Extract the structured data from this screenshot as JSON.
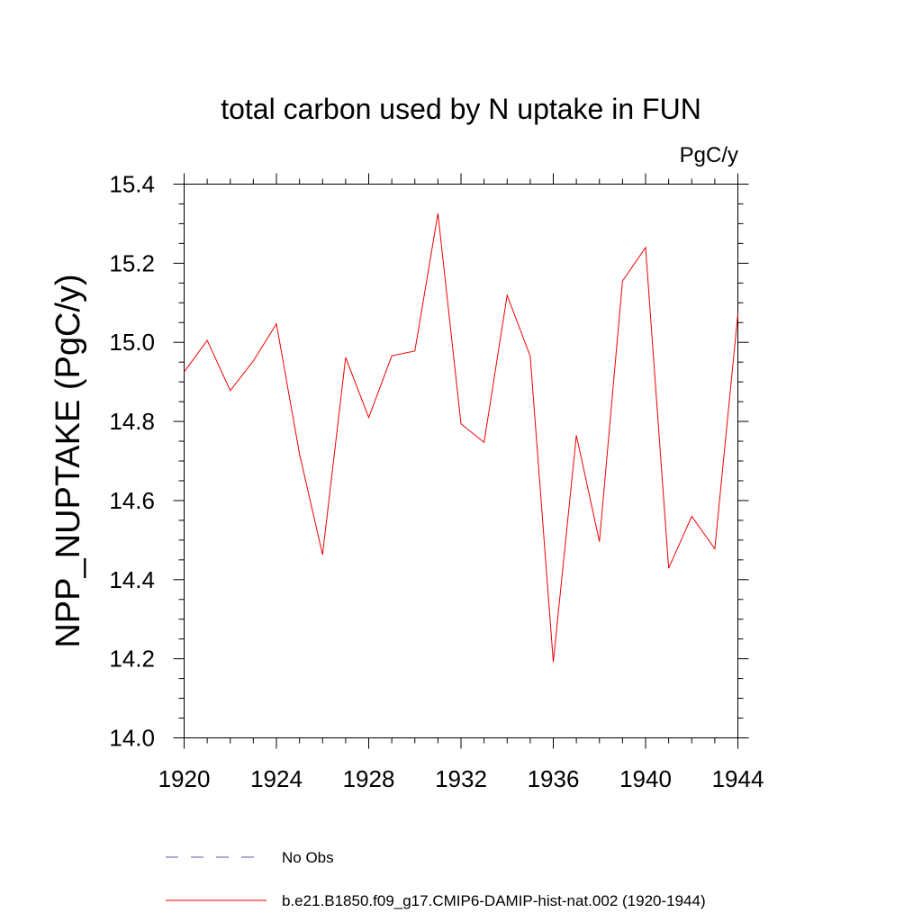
{
  "chart_data": {
    "type": "line",
    "title": "total carbon used by N uptake in FUN",
    "units_label": "PgC/y",
    "ylabel": "NPP_NUPTAKE  (PgC/y)",
    "xlabel": "",
    "xlim": [
      1920,
      1944
    ],
    "ylim": [
      14.0,
      15.4
    ],
    "x_ticks": [
      1920,
      1924,
      1928,
      1932,
      1936,
      1940,
      1944
    ],
    "x_tick_labels": [
      "1920",
      "1924",
      "1928",
      "1932",
      "1936",
      "1940",
      "1944"
    ],
    "y_ticks": [
      14.0,
      14.2,
      14.4,
      14.6,
      14.8,
      15.0,
      15.2,
      15.4
    ],
    "y_tick_labels": [
      "14.0",
      "14.2",
      "14.4",
      "14.6",
      "14.8",
      "15.0",
      "15.2",
      "15.4"
    ],
    "grid": false,
    "legend_position": "bottom",
    "series": [
      {
        "name": "No Obs",
        "color": "#5555aa",
        "style": "dashed",
        "x": [],
        "y": []
      },
      {
        "name": "b.e21.B1850.f09_g17.CMIP6-DAMIP-hist-nat.002 (1920-1944)",
        "color": "#ee0000",
        "style": "solid",
        "x": [
          1920,
          1921,
          1922,
          1923,
          1924,
          1925,
          1926,
          1927,
          1928,
          1929,
          1930,
          1931,
          1932,
          1933,
          1934,
          1935,
          1936,
          1937,
          1938,
          1939,
          1940,
          1941,
          1942,
          1943,
          1944
        ],
        "y": [
          14.925,
          15.005,
          14.878,
          14.953,
          15.047,
          14.718,
          14.463,
          14.962,
          14.81,
          14.966,
          14.978,
          15.326,
          14.794,
          14.747,
          15.119,
          14.965,
          14.192,
          14.765,
          14.496,
          15.155,
          15.24,
          14.429,
          14.56,
          14.478,
          15.072
        ]
      }
    ]
  }
}
